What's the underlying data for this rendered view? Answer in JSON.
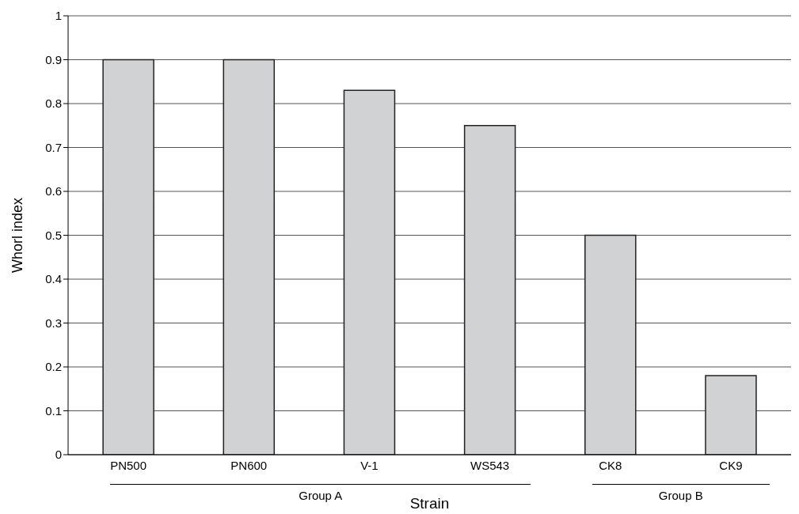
{
  "chart_data": {
    "type": "bar",
    "xlabel": "Strain",
    "ylabel": "Whorl index",
    "categories": [
      "PN500",
      "PN600",
      "V-1",
      "WS543",
      "CK8",
      "CK9"
    ],
    "values": [
      0.9,
      0.9,
      0.83,
      0.75,
      0.5,
      0.18
    ],
    "color": "#d1d2d4",
    "ylim": [
      0,
      1
    ],
    "yticks": [
      0,
      0.1,
      0.2,
      0.3,
      0.4,
      0.5,
      0.6,
      0.7,
      0.8,
      0.9,
      1
    ],
    "grid": "y",
    "annotations": [
      "Group A",
      "Group B"
    ]
  }
}
